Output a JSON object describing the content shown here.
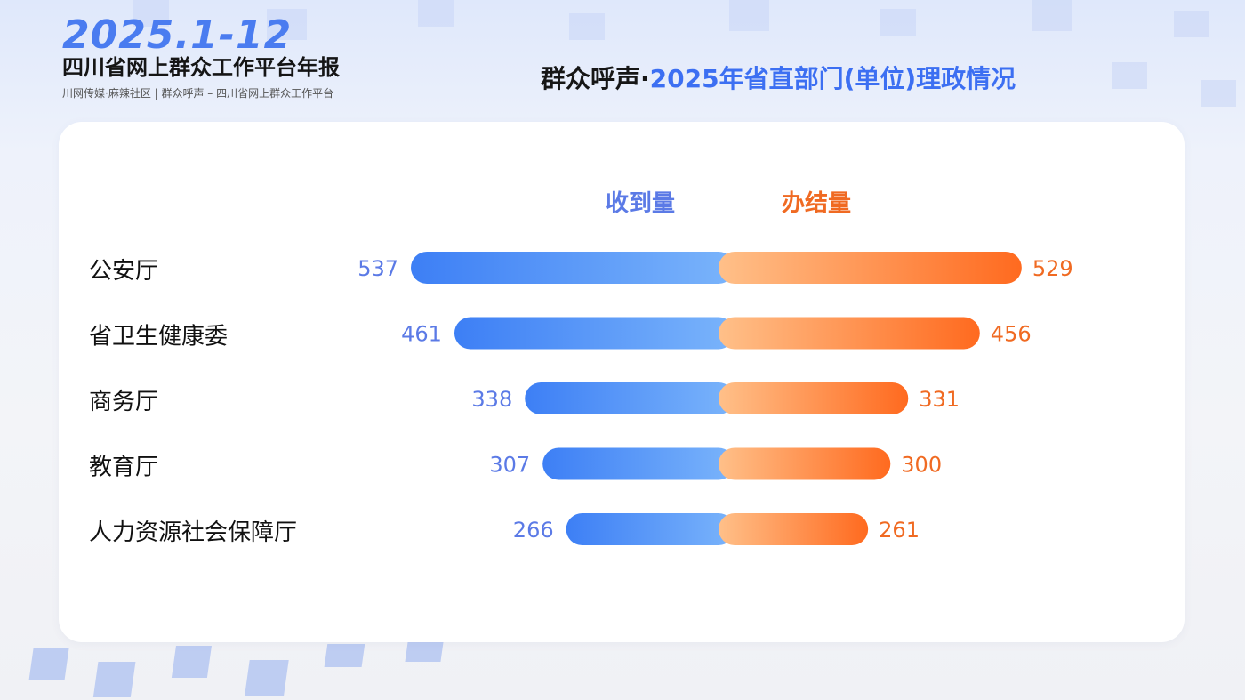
{
  "header": {
    "year": "2025.1-12",
    "title": "四川省网上群众工作平台年报",
    "subtitle": "川网传媒·麻辣社区 | 群众呼声 – 四川省网上群众工作平台"
  },
  "page_title": {
    "dark_part": "群众呼声·",
    "blue_part": "2025年省直部门(单位)理政情况"
  },
  "colors": {
    "received": "#4a86f5",
    "completed": "#ff7a2e",
    "received_label": "#5b7ae6",
    "completed_label": "#f06a22"
  },
  "chart_data": {
    "type": "bar",
    "orientation": "horizontal-diverging",
    "categories": [
      "公安厅",
      "省卫生健康委",
      "商务厅",
      "教育厅",
      "人力资源社会保障厅"
    ],
    "series": [
      {
        "name": "收到量",
        "values": [
          537,
          461,
          338,
          307,
          266
        ]
      },
      {
        "name": "办结量",
        "values": [
          529,
          456,
          331,
          300,
          261
        ]
      }
    ],
    "legend_placement": "top-center",
    "grid": false
  }
}
